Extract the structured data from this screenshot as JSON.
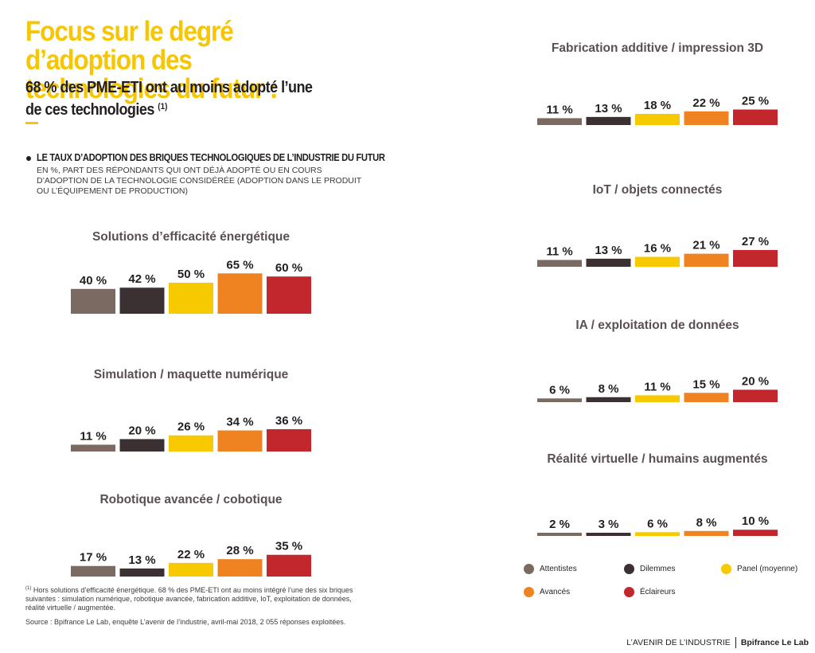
{
  "header": {
    "title": "Focus sur le degré d’adoption des technologies du futur :",
    "subtitle": "68 % des PME-ETI ont au moins adopté l’une de ces technologies",
    "subtitle_note": "(1)"
  },
  "intro": {
    "heading": "LE TAUX D’ADOPTION DES BRIQUES TECHNOLOGIQUES DE L’INDUSTRIE DU FUTUR",
    "description": "En %, part des répondants qui ont déjà adopté ou en cours d’adoption de la technologie considérée (adoption dans le produit ou l’équipement de production)"
  },
  "colors": [
    "#7b6a62",
    "#3b3133",
    "#f7c900",
    "#f08321",
    "#c1272d"
  ],
  "legend": {
    "items": [
      "Attentistes",
      "Dilemmes",
      "Panel (moyenne)",
      "Avancés",
      "Éclaireurs"
    ]
  },
  "chart_data": [
    {
      "type": "bar",
      "title": "Solutions d’efficacité énergétique",
      "categories": [
        "Attentistes",
        "Dilemmes",
        "Panel (moyenne)",
        "Avancés",
        "Éclaireurs"
      ],
      "values": [
        40,
        42,
        50,
        65,
        60
      ],
      "labels": [
        "40 %",
        "42 %",
        "50 %",
        "65 %",
        "60 %"
      ]
    },
    {
      "type": "bar",
      "title": "Simulation / maquette numérique",
      "categories": [
        "Attentistes",
        "Dilemmes",
        "Panel (moyenne)",
        "Avancés",
        "Éclaireurs"
      ],
      "values": [
        11,
        20,
        26,
        34,
        36
      ],
      "labels": [
        "11 %",
        "20 %",
        "26 %",
        "34 %",
        "36 %"
      ]
    },
    {
      "type": "bar",
      "title": "Robotique avancée / cobotique",
      "categories": [
        "Attentistes",
        "Dilemmes",
        "Panel (moyenne)",
        "Avancés",
        "Éclaireurs"
      ],
      "values": [
        17,
        13,
        22,
        28,
        35
      ],
      "labels": [
        "17 %",
        "13 %",
        "22 %",
        "28 %",
        "35 %"
      ]
    },
    {
      "type": "bar",
      "title": "Fabrication additive / impression 3D",
      "categories": [
        "Attentistes",
        "Dilemmes",
        "Panel (moyenne)",
        "Avancés",
        "Éclaireurs"
      ],
      "values": [
        11,
        13,
        18,
        22,
        25
      ],
      "labels": [
        "11 %",
        "13 %",
        "18 %",
        "22 %",
        "25 %"
      ]
    },
    {
      "type": "bar",
      "title": "IoT / objets connectés",
      "categories": [
        "Attentistes",
        "Dilemmes",
        "Panel (moyenne)",
        "Avancés",
        "Éclaireurs"
      ],
      "values": [
        11,
        13,
        16,
        21,
        27
      ],
      "labels": [
        "11 %",
        "13 %",
        "16 %",
        "21 %",
        "27 %"
      ]
    },
    {
      "type": "bar",
      "title": "IA / exploitation de données",
      "categories": [
        "Attentistes",
        "Dilemmes",
        "Panel (moyenne)",
        "Avancés",
        "Éclaireurs"
      ],
      "values": [
        6,
        8,
        11,
        15,
        20
      ],
      "labels": [
        "6 %",
        "8 %",
        "11 %",
        "15 %",
        "20 %"
      ]
    },
    {
      "type": "bar",
      "title": "Réalité virtuelle / humains augmentés",
      "categories": [
        "Attentistes",
        "Dilemmes",
        "Panel (moyenne)",
        "Avancés",
        "Éclaireurs"
      ],
      "values": [
        2,
        3,
        6,
        8,
        10
      ],
      "labels": [
        "2 %",
        "3 %",
        "6 %",
        "8 %",
        "10 %"
      ]
    }
  ],
  "footnote": {
    "marker": "(1)",
    "text": "Hors solutions d’efficacité énergétique. 68 % des PME-ETI ont au moins intégré l’une des six briques suivantes : simulation numérique, robotique avancée, fabrication additive, IoT, exploitation de données, réalité virtuelle / augmentée."
  },
  "source": "Source : Bpifrance Le Lab, enquête L’avenir de l’industrie, avril-mai 2018, 2 055 réponses exploitées.",
  "footer": {
    "publication": "L’AVENIR DE L’INDUSTRIE",
    "brand": "Bpifrance Le Lab"
  }
}
